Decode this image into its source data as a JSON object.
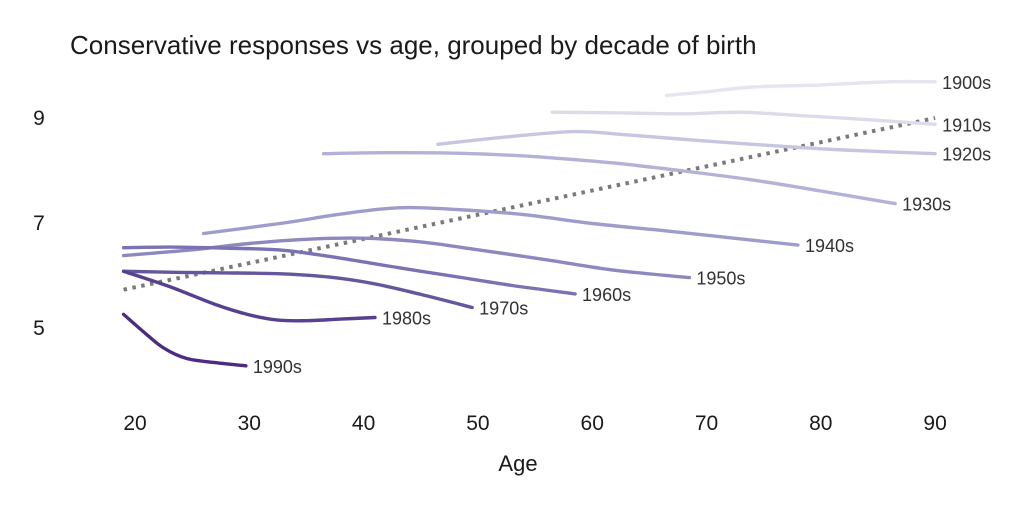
{
  "chart_data": {
    "type": "line",
    "title": "Conservative responses vs age, grouped by decade of birth",
    "xlabel": "Age",
    "ylabel": "",
    "xlim": [
      17,
      91
    ],
    "ylim": [
      4,
      10
    ],
    "x_ticks": [
      20,
      30,
      40,
      50,
      60,
      70,
      80,
      90
    ],
    "y_ticks": [
      5,
      7,
      9
    ],
    "grid": false,
    "legend": "inline labels at line ends",
    "series": [
      {
        "name": "1900s",
        "color": "#e6e4ef",
        "x": [
          66.5,
          70,
          74,
          80,
          86,
          90
        ],
        "y": [
          9.43,
          9.5,
          9.59,
          9.63,
          9.69,
          9.69
        ]
      },
      {
        "name": "1910s",
        "color": "#dddbe9",
        "x": [
          56.5,
          62,
          68,
          73,
          78,
          84,
          90
        ],
        "y": [
          9.11,
          9.1,
          9.08,
          9.11,
          9.05,
          8.97,
          8.88
        ]
      },
      {
        "name": "1920s",
        "color": "#c6c6e0",
        "x": [
          46.5,
          53,
          58.5,
          63,
          70,
          76,
          82,
          90
        ],
        "y": [
          8.5,
          8.65,
          8.74,
          8.68,
          8.56,
          8.47,
          8.39,
          8.32
        ]
      },
      {
        "name": "1930s",
        "color": "#b3b2d6",
        "x": [
          36.5,
          42,
          48,
          53,
          56,
          62,
          68,
          74,
          80,
          86.5
        ],
        "y": [
          8.32,
          8.34,
          8.33,
          8.29,
          8.25,
          8.14,
          7.99,
          7.82,
          7.61,
          7.37
        ]
      },
      {
        "name": "1940s",
        "color": "#9e9cca",
        "x": [
          26,
          33,
          38,
          43,
          48,
          54,
          60,
          66,
          72,
          78
        ],
        "y": [
          6.8,
          7.0,
          7.17,
          7.29,
          7.26,
          7.16,
          6.99,
          6.86,
          6.72,
          6.58
        ]
      },
      {
        "name": "1950s",
        "color": "#8d89bf",
        "x": [
          19,
          25,
          30,
          35,
          40,
          45,
          50,
          56,
          62,
          68.5
        ],
        "y": [
          6.38,
          6.49,
          6.61,
          6.69,
          6.71,
          6.64,
          6.49,
          6.3,
          6.1,
          5.96
        ]
      },
      {
        "name": "1960s",
        "color": "#7a72b2",
        "x": [
          19,
          23,
          28,
          33,
          38,
          43,
          48,
          53,
          58.5
        ],
        "y": [
          6.53,
          6.54,
          6.52,
          6.48,
          6.33,
          6.15,
          5.98,
          5.81,
          5.65
        ]
      },
      {
        "name": "1970s",
        "color": "#66569f",
        "x": [
          19,
          24,
          28,
          33,
          37,
          41,
          45,
          49.5
        ],
        "y": [
          6.08,
          6.06,
          6.05,
          6.03,
          5.97,
          5.84,
          5.64,
          5.39
        ]
      },
      {
        "name": "1980s",
        "color": "#56408f",
        "x": [
          19,
          23,
          27,
          30,
          32.5,
          35,
          38,
          41
        ],
        "y": [
          6.08,
          5.79,
          5.45,
          5.25,
          5.15,
          5.14,
          5.17,
          5.2
        ]
      },
      {
        "name": "1990s",
        "color": "#4b2c82",
        "x": [
          19,
          21,
          22.5,
          24.5,
          27,
          29.7
        ],
        "y": [
          5.26,
          4.88,
          4.62,
          4.42,
          4.34,
          4.28
        ]
      }
    ],
    "trend_line": {
      "style": "dotted",
      "color": "#7a7a7a",
      "x": [
        19,
        90
      ],
      "y": [
        5.73,
        9.0
      ]
    }
  }
}
